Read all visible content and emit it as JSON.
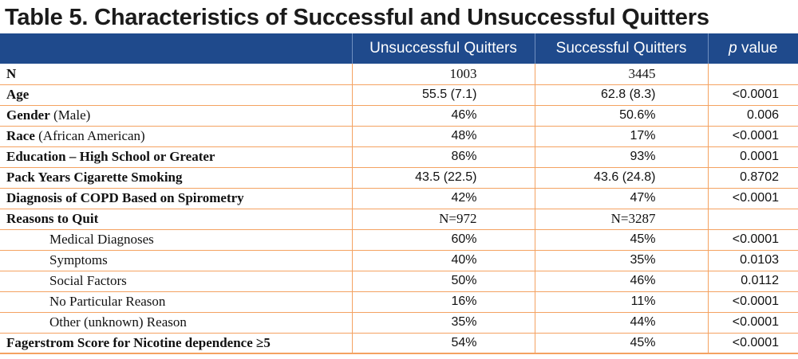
{
  "title": "Table 5. Characteristics of Successful and Unsuccessful Quitters",
  "header": {
    "col0": "",
    "col1": "Unsuccessful Quitters",
    "col2": "Successful Quitters",
    "col3_italic": "p",
    "col3_rest": " value"
  },
  "rows": [
    {
      "label_bold": "N",
      "label_rest": "",
      "unsuccessful": "1003",
      "successful": "3445",
      "p": ""
    },
    {
      "label_bold": "Age",
      "label_rest": "",
      "unsuccessful": "55.5 (7.1)",
      "successful": "62.8 (8.3)",
      "p": "<0.0001"
    },
    {
      "label_bold": "Gender",
      "label_rest": " (Male)",
      "unsuccessful": "46%",
      "successful": "50.6%",
      "p": "0.006"
    },
    {
      "label_bold": "Race",
      "label_rest": " (African American)",
      "unsuccessful": "48%",
      "successful": "17%",
      "p": "<0.0001"
    },
    {
      "label_bold": "Education – High School or Greater",
      "label_rest": "",
      "unsuccessful": "86%",
      "successful": "93%",
      "p": "0.0001"
    },
    {
      "label_bold": "Pack Years Cigarette Smoking",
      "label_rest": "",
      "unsuccessful": "43.5 (22.5)",
      "successful": "43.6 (24.8)",
      "p": "0.8702"
    },
    {
      "label_bold": "Diagnosis of COPD Based on Spirometry",
      "label_rest": "",
      "unsuccessful": "42%",
      "successful": "47%",
      "p": "<0.0001"
    },
    {
      "label_bold": "Reasons to Quit",
      "label_rest": "",
      "unsuccessful": "N=972",
      "successful": "N=3287",
      "p": ""
    },
    {
      "label": "Medical Diagnoses",
      "unsuccessful": "60%",
      "successful": "45%",
      "p": "<0.0001"
    },
    {
      "label": "Symptoms",
      "unsuccessful": "40%",
      "successful": "35%",
      "p": "0.0103"
    },
    {
      "label": "Social Factors",
      "unsuccessful": "50%",
      "successful": "46%",
      "p": "0.0112"
    },
    {
      "label": "No Particular Reason",
      "unsuccessful": "16%",
      "successful": "11%",
      "p": "<0.0001"
    },
    {
      "label": "Other (unknown) Reason",
      "unsuccessful": "35%",
      "successful": "44%",
      "p": "<0.0001"
    },
    {
      "label_bold": "Fagerstrom Score for Nicotine dependence ≥5",
      "label_rest": "",
      "unsuccessful": "54%",
      "successful": "45%",
      "p": "<0.0001"
    }
  ]
}
